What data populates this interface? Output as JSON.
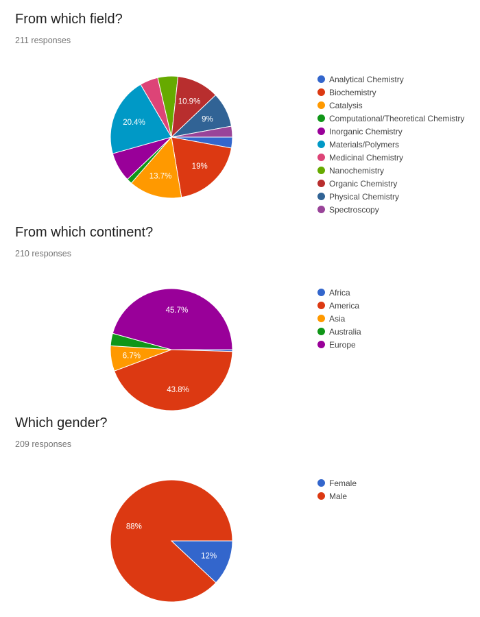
{
  "chart_data": [
    {
      "type": "pie",
      "title": "From which field?",
      "subtitle": "211 responses",
      "legend_position": "right",
      "series": [
        {
          "name": "Analytical Chemistry",
          "value": 2.8,
          "color": "#3366CC",
          "label": ""
        },
        {
          "name": "Biochemistry",
          "value": 19.0,
          "color": "#DC3912",
          "label": "19%"
        },
        {
          "name": "Catalysis",
          "value": 13.7,
          "color": "#FF9900",
          "label": "13.7%"
        },
        {
          "name": "Computational/Theoretical Chemistry",
          "value": 1.4,
          "color": "#109618",
          "label": ""
        },
        {
          "name": "Inorganic Chemistry",
          "value": 7.6,
          "color": "#990099",
          "label": ""
        },
        {
          "name": "Materials/Polymers",
          "value": 20.4,
          "color": "#0099C6",
          "label": "20.4%"
        },
        {
          "name": "Medicinal Chemistry",
          "value": 4.7,
          "color": "#DD4477",
          "label": ""
        },
        {
          "name": "Nanochemistry",
          "value": 5.2,
          "color": "#66AA00",
          "label": ""
        },
        {
          "name": "Organic Chemistry",
          "value": 10.9,
          "color": "#B82E2E",
          "label": "10.9%"
        },
        {
          "name": "Physical Chemistry",
          "value": 9.0,
          "color": "#316395",
          "label": "9%"
        },
        {
          "name": "Spectroscopy",
          "value": 2.8,
          "color": "#994499",
          "label": ""
        }
      ]
    },
    {
      "type": "pie",
      "title": "From which continent?",
      "subtitle": "210 responses",
      "legend_position": "right",
      "series": [
        {
          "name": "Africa",
          "value": 0.5,
          "color": "#3366CC",
          "label": ""
        },
        {
          "name": "America",
          "value": 43.8,
          "color": "#DC3912",
          "label": "43.8%"
        },
        {
          "name": "Asia",
          "value": 6.7,
          "color": "#FF9900",
          "label": "6.7%"
        },
        {
          "name": "Australia",
          "value": 3.3,
          "color": "#109618",
          "label": ""
        },
        {
          "name": "Europe",
          "value": 45.7,
          "color": "#990099",
          "label": "45.7%"
        }
      ]
    },
    {
      "type": "pie",
      "title": "Which gender?",
      "subtitle": "209 responses",
      "legend_position": "right",
      "series": [
        {
          "name": "Female",
          "value": 12,
          "color": "#3366CC",
          "label": "12%"
        },
        {
          "name": "Male",
          "value": 88,
          "color": "#DC3912",
          "label": "88%"
        }
      ]
    }
  ]
}
